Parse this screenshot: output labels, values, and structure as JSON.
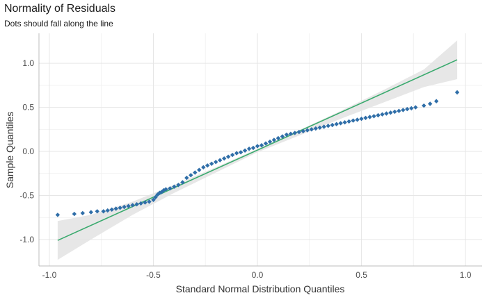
{
  "chart_data": {
    "type": "scatter",
    "title": "Normality of Residuals",
    "subtitle": "Dots should fall along the line",
    "xlabel": "Standard Normal Distribution Quantiles",
    "ylabel": "Sample Quantiles",
    "xlim": [
      -1.05,
      1.08
    ],
    "ylim": [
      -1.3,
      1.34
    ],
    "x_ticks": [
      -1.0,
      -0.5,
      0.0,
      0.5,
      1.0
    ],
    "x_tick_labels": [
      "-1.0",
      "-0.5",
      "0.0",
      "0.5",
      "1.0"
    ],
    "y_ticks": [
      -1.0,
      -0.5,
      0.0,
      0.5,
      1.0
    ],
    "y_tick_labels": [
      "-1.0",
      "-0.5",
      "0.0",
      "0.5",
      "1.0"
    ],
    "grid": true,
    "legend": "none",
    "reference_line": {
      "x": [
        -0.96,
        0.96
      ],
      "y": [
        -1.01,
        1.04
      ],
      "color": "#3aaa6e"
    },
    "confidence_band": {
      "x": [
        -0.96,
        -0.8,
        -0.6,
        -0.4,
        -0.2,
        0.0,
        0.2,
        0.4,
        0.6,
        0.8,
        0.96
      ],
      "upper": [
        -0.79,
        -0.72,
        -0.57,
        -0.38,
        -0.18,
        0.03,
        0.24,
        0.46,
        0.69,
        0.93,
        1.26
      ],
      "lower": [
        -1.23,
        -1.0,
        -0.72,
        -0.47,
        -0.24,
        -0.01,
        0.18,
        0.37,
        0.55,
        0.73,
        0.82
      ],
      "color": "#e3e3e3"
    },
    "points_color": "#2f6ea8",
    "points": {
      "x": [
        -0.96,
        -0.88,
        -0.84,
        -0.8,
        -0.77,
        -0.74,
        -0.72,
        -0.7,
        -0.68,
        -0.66,
        -0.64,
        -0.62,
        -0.6,
        -0.58,
        -0.56,
        -0.54,
        -0.52,
        -0.5,
        -0.49,
        -0.48,
        -0.47,
        -0.46,
        -0.45,
        -0.44,
        -0.42,
        -0.4,
        -0.38,
        -0.36,
        -0.34,
        -0.32,
        -0.3,
        -0.28,
        -0.26,
        -0.24,
        -0.22,
        -0.2,
        -0.18,
        -0.16,
        -0.14,
        -0.12,
        -0.1,
        -0.08,
        -0.06,
        -0.04,
        -0.02,
        0.0,
        0.02,
        0.04,
        0.06,
        0.08,
        0.1,
        0.12,
        0.14,
        0.16,
        0.18,
        0.2,
        0.22,
        0.24,
        0.26,
        0.28,
        0.3,
        0.32,
        0.34,
        0.36,
        0.38,
        0.4,
        0.42,
        0.44,
        0.46,
        0.48,
        0.5,
        0.52,
        0.54,
        0.56,
        0.58,
        0.6,
        0.62,
        0.64,
        0.66,
        0.68,
        0.7,
        0.72,
        0.74,
        0.76,
        0.8,
        0.83,
        0.86,
        0.96
      ],
      "y": [
        -0.72,
        -0.71,
        -0.7,
        -0.69,
        -0.68,
        -0.68,
        -0.67,
        -0.66,
        -0.65,
        -0.64,
        -0.63,
        -0.62,
        -0.61,
        -0.6,
        -0.59,
        -0.58,
        -0.57,
        -0.55,
        -0.52,
        -0.49,
        -0.47,
        -0.46,
        -0.44,
        -0.43,
        -0.42,
        -0.4,
        -0.38,
        -0.35,
        -0.3,
        -0.27,
        -0.24,
        -0.21,
        -0.18,
        -0.16,
        -0.14,
        -0.12,
        -0.1,
        -0.08,
        -0.06,
        -0.04,
        -0.02,
        -0.01,
        0.01,
        0.03,
        0.04,
        0.06,
        0.07,
        0.09,
        0.11,
        0.13,
        0.15,
        0.17,
        0.19,
        0.2,
        0.21,
        0.22,
        0.23,
        0.24,
        0.25,
        0.26,
        0.27,
        0.28,
        0.29,
        0.3,
        0.31,
        0.32,
        0.33,
        0.34,
        0.35,
        0.36,
        0.37,
        0.38,
        0.39,
        0.4,
        0.41,
        0.42,
        0.43,
        0.44,
        0.45,
        0.46,
        0.47,
        0.48,
        0.49,
        0.5,
        0.52,
        0.54,
        0.57,
        0.67
      ]
    }
  }
}
